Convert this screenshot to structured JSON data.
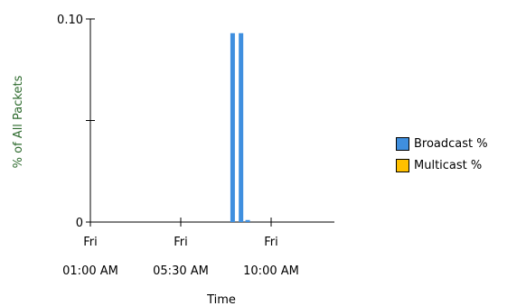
{
  "chart_data": {
    "type": "bar",
    "ylabel": "% of All Packets",
    "xlabel": "Time",
    "ylim": [
      0,
      0.1
    ],
    "y_ticks": [
      {
        "value": 0,
        "label": "0"
      },
      {
        "value": 0.05,
        "label": ""
      },
      {
        "value": 0.1,
        "label": "0.10"
      }
    ],
    "x_ticks": [
      {
        "day": "Fri",
        "time": "01:00 AM"
      },
      {
        "day": "Fri",
        "time": "05:30 AM"
      },
      {
        "day": "Fri",
        "time": "10:00 AM"
      }
    ],
    "series": [
      {
        "name": "Broadcast %",
        "color": "#3f8fdf",
        "points": [
          {
            "time": "Fri 08:05 AM",
            "value": 0.093
          },
          {
            "time": "Fri 08:30 AM",
            "value": 0.093
          },
          {
            "time": "Fri 08:50 AM",
            "value": 0.001
          }
        ]
      },
      {
        "name": "Multicast %",
        "color": "#ffc000",
        "points": []
      }
    ]
  }
}
